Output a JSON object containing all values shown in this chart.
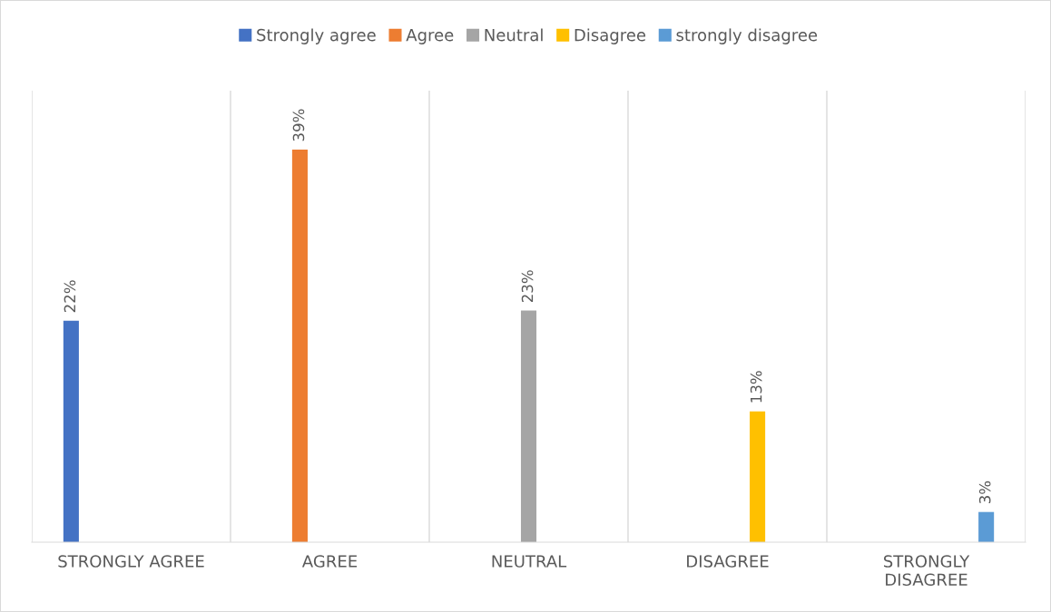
{
  "chart_data": {
    "type": "bar",
    "categories": [
      "STRONGLY AGREE",
      "AGREE",
      "NEUTRAL",
      "DISAGREE",
      "STRONGLY\nDISAGREE"
    ],
    "series": [
      {
        "name": "Strongly agree",
        "color": "#4472c4",
        "values": [
          22,
          null,
          null,
          null,
          null
        ],
        "value_labels": [
          "22%",
          null,
          null,
          null,
          null
        ]
      },
      {
        "name": "Agree",
        "color": "#ed7d31",
        "values": [
          null,
          39,
          null,
          null,
          null
        ],
        "value_labels": [
          null,
          "39%",
          null,
          null,
          null
        ]
      },
      {
        "name": "Neutral",
        "color": "#a5a5a5",
        "values": [
          null,
          null,
          23,
          null,
          null
        ],
        "value_labels": [
          null,
          null,
          "23%",
          null,
          null
        ]
      },
      {
        "name": "Disagree",
        "color": "#ffc000",
        "values": [
          null,
          null,
          null,
          13,
          null
        ],
        "value_labels": [
          null,
          null,
          null,
          "13%",
          null
        ]
      },
      {
        "name": "strongly disagree",
        "color": "#5b9bd5",
        "values": [
          null,
          null,
          null,
          null,
          3
        ],
        "value_labels": [
          null,
          null,
          null,
          null,
          "3%"
        ]
      }
    ],
    "grid": "x",
    "legend": "top"
  }
}
